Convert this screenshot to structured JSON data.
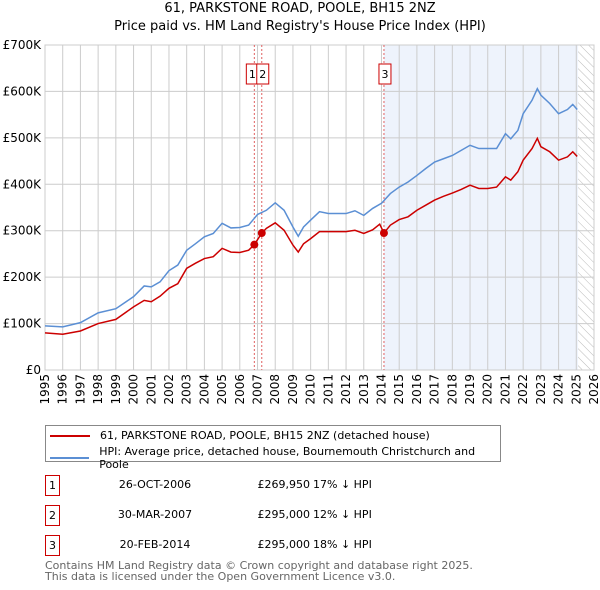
{
  "chart_data": {
    "type": "line",
    "title": "61, PARKSTONE ROAD, POOLE, BH15 2NZ",
    "subtitle": "Price paid vs. HM Land Registry's House Price Index (HPI)",
    "xlim": [
      1995,
      2026
    ],
    "ylim": [
      0,
      700000
    ],
    "x_ticks": [
      "1995",
      "1996",
      "1997",
      "1998",
      "1999",
      "2000",
      "2001",
      "2002",
      "2003",
      "2004",
      "2005",
      "2006",
      "2007",
      "2008",
      "2009",
      "2010",
      "2011",
      "2012",
      "2013",
      "2014",
      "2015",
      "2016",
      "2017",
      "2018",
      "2019",
      "2020",
      "2021",
      "2022",
      "2023",
      "2024",
      "2025",
      "2026"
    ],
    "y_ticks": [
      {
        "v": 0,
        "label": "£0"
      },
      {
        "v": 100000,
        "label": "£100K"
      },
      {
        "v": 200000,
        "label": "£200K"
      },
      {
        "v": 300000,
        "label": "£300K"
      },
      {
        "v": 400000,
        "label": "£400K"
      },
      {
        "v": 500000,
        "label": "£500K"
      },
      {
        "v": 600000,
        "label": "£600K"
      },
      {
        "v": 700000,
        "label": "£700K"
      }
    ],
    "grid": true,
    "shaded_region": [
      2014.14,
      2025.1
    ],
    "hatched_after": 2025.1,
    "series": [
      {
        "name": "61, PARKSTONE ROAD, POOLE, BH15 2NZ (detached house)",
        "color": "#cc0000",
        "x": [
          1995,
          1996,
          1997,
          1998,
          1999,
          2000,
          2000.6,
          2001,
          2001.5,
          2002,
          2002.5,
          2003,
          2003.5,
          2004,
          2004.5,
          2005,
          2005.5,
          2006,
          2006.5,
          2006.82,
          2007.24,
          2007.5,
          2008,
          2008.5,
          2009,
          2009.3,
          2009.6,
          2010,
          2010.5,
          2011,
          2011.5,
          2012,
          2012.5,
          2013,
          2013.5,
          2013.9,
          2014.14,
          2014.5,
          2015,
          2015.5,
          2016,
          2016.5,
          2017,
          2017.5,
          2018,
          2018.5,
          2019,
          2019.5,
          2020,
          2020.5,
          2021,
          2021.3,
          2021.7,
          2022,
          2022.5,
          2022.8,
          2023,
          2023.5,
          2024,
          2024.5,
          2024.8,
          2025.05
        ],
        "y": [
          80,
          77,
          84,
          100,
          109,
          136,
          150,
          147,
          159,
          176,
          186,
          219,
          230,
          240,
          244,
          262,
          254,
          253,
          258,
          270,
          295,
          305,
          317,
          301,
          269,
          254,
          272,
          283,
          298,
          298,
          298,
          298,
          301,
          294,
          302,
          314,
          295,
          312,
          324,
          330,
          344,
          355,
          366,
          374,
          381,
          389,
          398,
          391,
          391,
          394,
          416,
          409,
          427,
          452,
          477,
          499,
          481,
          470,
          452,
          459,
          470,
          460
        ]
      },
      {
        "name": "HPI: Average price, detached house, Bournemouth Christchurch and Poole",
        "color": "#5b8fd4",
        "x": [
          1995,
          1996,
          1997,
          1998,
          1999,
          2000,
          2000.6,
          2001,
          2001.5,
          2002,
          2002.5,
          2003,
          2003.5,
          2004,
          2004.5,
          2005,
          2005.5,
          2006,
          2006.5,
          2007,
          2007.5,
          2008,
          2008.5,
          2009,
          2009.3,
          2009.6,
          2010,
          2010.5,
          2011,
          2011.5,
          2012,
          2012.5,
          2013,
          2013.5,
          2014,
          2014.5,
          2015,
          2015.5,
          2016,
          2016.5,
          2017,
          2017.5,
          2018,
          2018.5,
          2019,
          2019.5,
          2020,
          2020.5,
          2021,
          2021.3,
          2021.7,
          2022,
          2022.5,
          2022.8,
          2023,
          2023.5,
          2024,
          2024.5,
          2024.8,
          2025.05
        ],
        "y": [
          95,
          93,
          102,
          123,
          132,
          158,
          181,
          179,
          190,
          214,
          226,
          258,
          272,
          287,
          294,
          316,
          306,
          307,
          312,
          335,
          344,
          360,
          344,
          308,
          288,
          308,
          323,
          341,
          337,
          337,
          337,
          343,
          333,
          348,
          359,
          380,
          394,
          405,
          419,
          434,
          448,
          455,
          462,
          473,
          484,
          477,
          477,
          477,
          509,
          498,
          516,
          552,
          581,
          606,
          592,
          574,
          552,
          561,
          572,
          561
        ]
      }
    ],
    "y_unit_multiplier": 1000,
    "sales": [
      {
        "n": "1",
        "x": 2006.82,
        "y": 269950,
        "date": "26-OCT-2006",
        "price": "£269,950",
        "hpi": "17% ↓ HPI"
      },
      {
        "n": "2",
        "x": 2007.24,
        "y": 295000,
        "date": "30-MAR-2007",
        "price": "£295,000",
        "hpi": "12% ↓ HPI"
      },
      {
        "n": "3",
        "x": 2014.14,
        "y": 295000,
        "date": "20-FEB-2014",
        "price": "£295,000",
        "hpi": "18% ↓ HPI"
      }
    ]
  },
  "legend": {
    "property": "61, PARKSTONE ROAD, POOLE, BH15 2NZ (detached house)",
    "hpi": "HPI: Average price, detached house, Bournemouth Christchurch and Poole"
  },
  "footer": {
    "line1": "Contains HM Land Registry data © Crown copyright and database right 2025.",
    "line2": "This data is licensed under the Open Government Licence v3.0."
  }
}
